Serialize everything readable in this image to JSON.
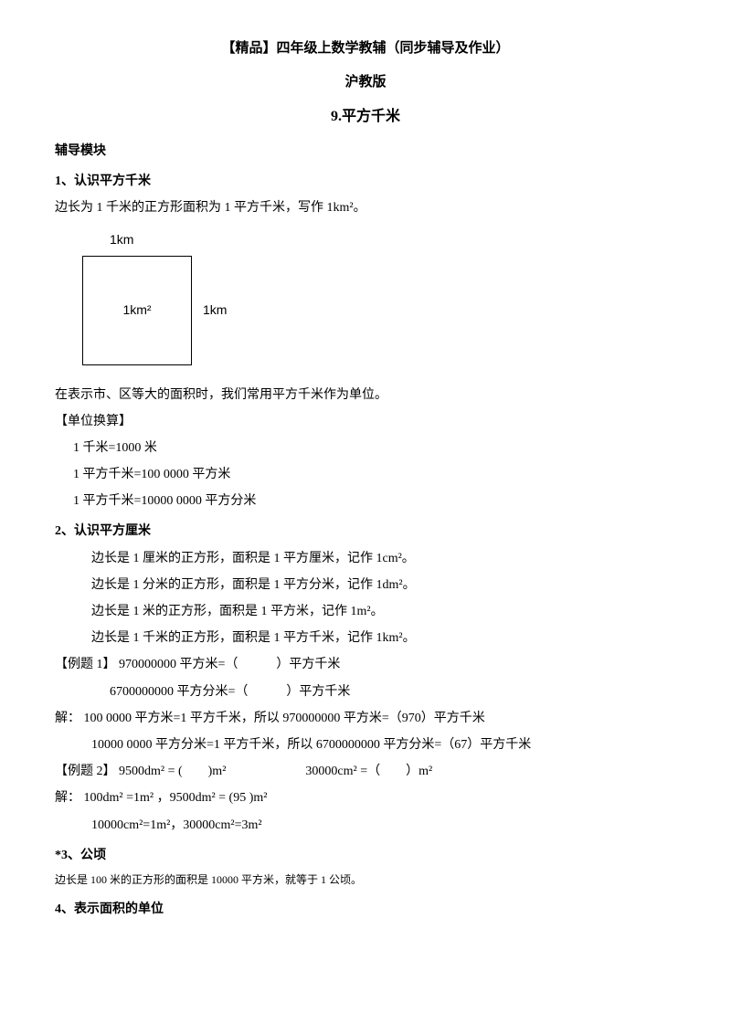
{
  "title": {
    "main": "【精品】四年级上数学教辅（同步辅导及作业）",
    "publisher": "沪教版",
    "chapter": "9.平方千米"
  },
  "module_header": "辅导模块",
  "section1": {
    "header": "1、认识平方千米",
    "def": "边长为 1 千米的正方形面积为 1 平方千米，写作 1km²。",
    "diagram": {
      "top_label": "1km",
      "inside_label": "1km²",
      "side_label": "1km"
    },
    "usage": "在表示市、区等大的面积时，我们常用平方千米作为单位。",
    "conversion_header": "【单位换算】",
    "conv1": "1 千米=1000 米",
    "conv2": "1 平方千米=100 0000 平方米",
    "conv3": "1 平方千米=10000 0000 平方分米"
  },
  "section2": {
    "header": "2、认识平方厘米",
    "line1": "边长是 1 厘米的正方形，面积是 1 平方厘米，记作 1cm²。",
    "line2": "边长是 1 分米的正方形，面积是 1 平方分米，记作 1dm²。",
    "line3": "边长是 1 米的正方形，面积是 1 平方米，记作 1m²。",
    "line4": "边长是 1 千米的正方形，面积是 1 平方千米，记作 1km²。"
  },
  "example1": {
    "header": "【例题 1】",
    "q1": "970000000 平方米=（　　　）平方千米",
    "q2": "6700000000 平方分米=（　　　）平方千米",
    "solution_label": "解：",
    "sol1": "100 0000 平方米=1 平方千米，所以 970000000 平方米=（970）平方千米",
    "sol2": "10000 0000 平方分米=1 平方千米，所以 6700000000 平方分米=（67）平方千米"
  },
  "example2": {
    "header": "【例题 2】",
    "q1": "9500dm² = (　　)m²",
    "q2": "30000cm² =（　　）m²",
    "solution_label": "解：",
    "sol1": "100dm² =1m²  ，9500dm² = (95 )m²",
    "sol2": "10000cm²=1m²，30000cm²=3m²"
  },
  "section3": {
    "header": "*3、公顷",
    "line": "边长是 100 米的正方形的面积是 10000 平方米，就等于 1 公顷。"
  },
  "section4": {
    "header": "4、表示面积的单位"
  }
}
